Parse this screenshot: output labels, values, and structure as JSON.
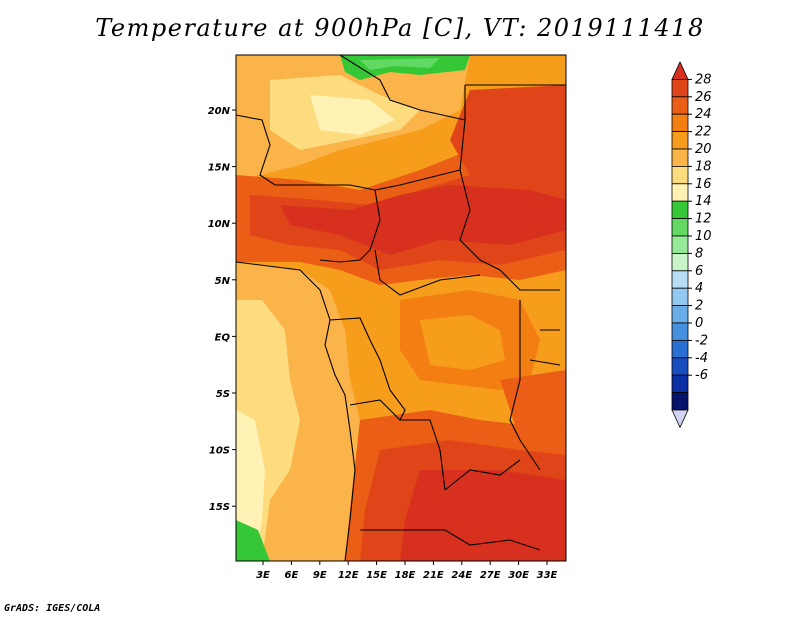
{
  "title": "Temperature at 900hPa [C], VT: 2019111418",
  "credit": "GrADS: IGES/COLA",
  "map": {
    "lon_ticks": [
      "3E",
      "6E",
      "9E",
      "12E",
      "15E",
      "18E",
      "21E",
      "24E",
      "27E",
      "30E",
      "33E"
    ],
    "lat_ticks": [
      "20N",
      "15N",
      "10N",
      "5N",
      "EQ",
      "5S",
      "10S",
      "15S"
    ]
  },
  "colorbar": {
    "labels": [
      "28",
      "26",
      "24",
      "22",
      "20",
      "18",
      "16",
      "14",
      "12",
      "10",
      "8",
      "6",
      "4",
      "2",
      "0",
      "-2",
      "-4",
      "-6"
    ],
    "colors": [
      "#d7301f",
      "#e0451a",
      "#ea5f15",
      "#f37e12",
      "#f79d1c",
      "#fab44a",
      "#fddb7f",
      "#fff2b4",
      "#36c736",
      "#62d962",
      "#96e996",
      "#c9f5c9",
      "#b7ddf6",
      "#93c9f0",
      "#6aaee8",
      "#4690e0",
      "#2a6fd2",
      "#1a4dc0",
      "#0d2fa6",
      "#08136c",
      "#d3d3f5"
    ]
  }
}
